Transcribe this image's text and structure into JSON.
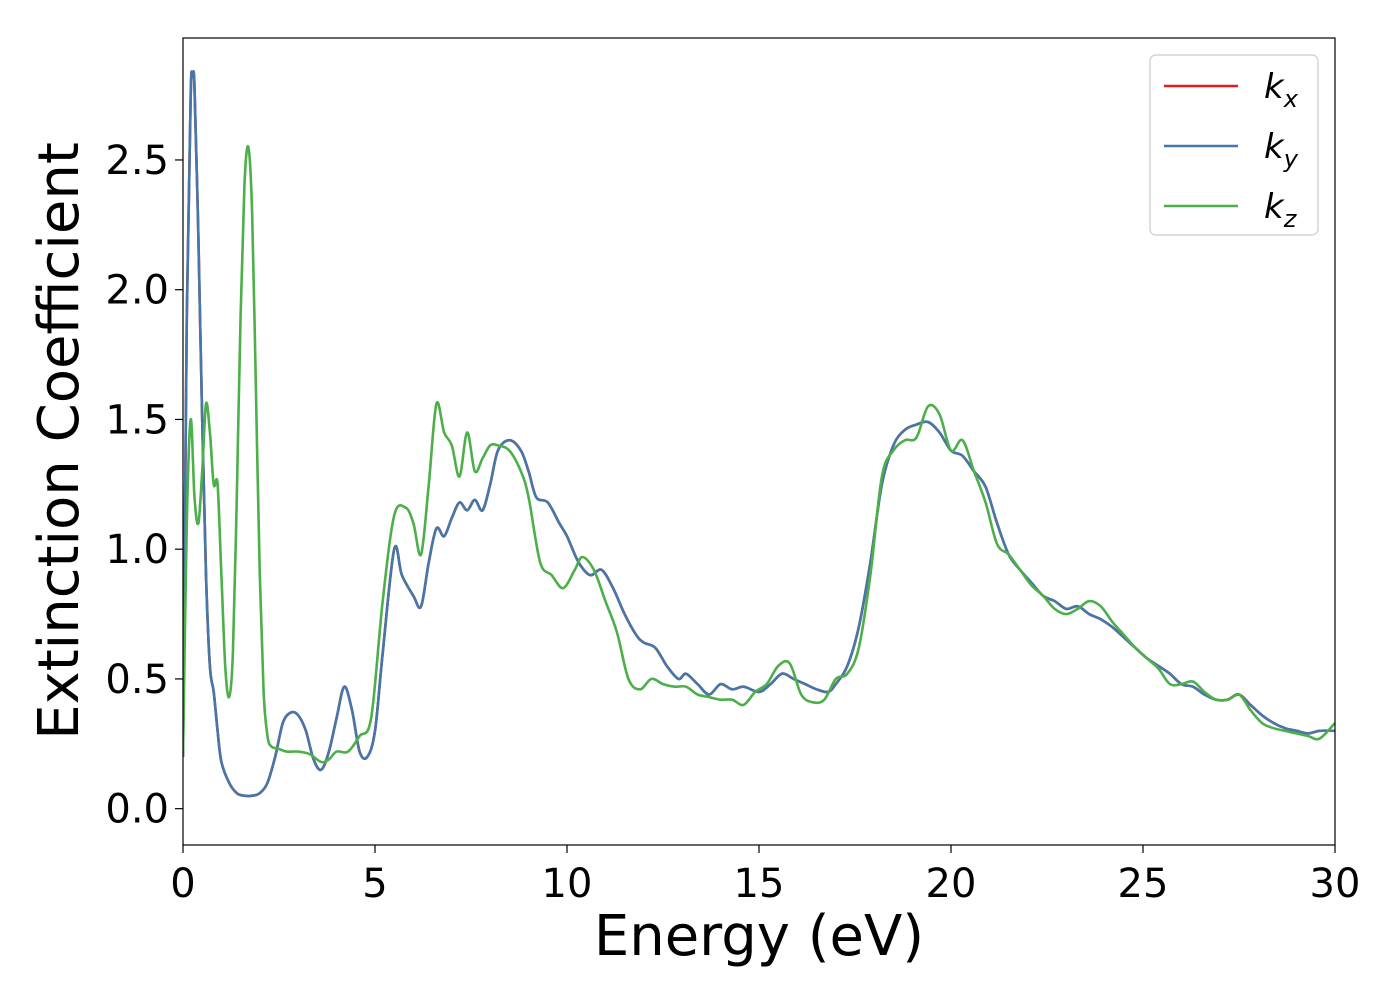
{
  "chart_data": {
    "type": "line",
    "xlabel": "Energy (eV)",
    "ylabel": "Extinction Coefficient",
    "xlim": [
      0,
      30
    ],
    "ylim": [
      -0.14,
      2.97
    ],
    "xticks": [
      0,
      5,
      10,
      15,
      20,
      25,
      30
    ],
    "yticks": [
      0.0,
      0.5,
      1.0,
      1.5,
      2.0,
      2.5
    ],
    "xtick_labels": [
      "0",
      "5",
      "10",
      "15",
      "20",
      "25",
      "30"
    ],
    "ytick_labels": [
      "0.0",
      "0.5",
      "1.0",
      "1.5",
      "2.0",
      "2.5"
    ],
    "grid": false,
    "legend_position": "top-right",
    "series": [
      {
        "name": "k_x",
        "label_base": "k",
        "label_sub": "x",
        "color": "#e41a1c",
        "x": [
          0,
          0.1,
          0.2,
          0.25,
          0.3,
          0.4,
          0.5,
          0.6,
          0.7,
          0.8,
          0.9,
          1.0,
          1.2,
          1.4,
          1.6,
          1.8,
          2.0,
          2.2,
          2.4,
          2.6,
          2.8,
          3.0,
          3.2,
          3.4,
          3.6,
          3.8,
          4.0,
          4.2,
          4.4,
          4.6,
          4.8,
          5.0,
          5.2,
          5.5,
          5.7,
          6.0,
          6.2,
          6.4,
          6.6,
          6.8,
          7.0,
          7.2,
          7.4,
          7.6,
          7.8,
          8.0,
          8.2,
          8.5,
          8.8,
          9.0,
          9.2,
          9.5,
          9.8,
          10.0,
          10.3,
          10.6,
          10.9,
          11.2,
          11.5,
          11.8,
          12.0,
          12.3,
          12.6,
          12.9,
          13.1,
          13.4,
          13.7,
          14.0,
          14.3,
          14.6,
          15.0,
          15.3,
          15.6,
          15.9,
          16.2,
          16.5,
          16.8,
          17.0,
          17.3,
          17.6,
          17.9,
          18.2,
          18.5,
          18.8,
          19.1,
          19.4,
          19.7,
          20.0,
          20.3,
          20.6,
          20.9,
          21.2,
          21.5,
          21.8,
          22.1,
          22.4,
          22.7,
          23.0,
          23.3,
          23.6,
          23.9,
          24.2,
          24.5,
          24.8,
          25.1,
          25.4,
          25.7,
          26.0,
          26.3,
          26.6,
          26.9,
          27.2,
          27.5,
          27.8,
          28.1,
          28.4,
          28.7,
          29.0,
          29.3,
          29.6,
          30.0
        ],
        "y": [
          0.2,
          1.9,
          2.75,
          2.82,
          2.78,
          2.2,
          1.5,
          0.9,
          0.55,
          0.45,
          0.3,
          0.18,
          0.1,
          0.06,
          0.05,
          0.05,
          0.06,
          0.1,
          0.2,
          0.33,
          0.37,
          0.36,
          0.3,
          0.19,
          0.15,
          0.22,
          0.35,
          0.47,
          0.38,
          0.22,
          0.2,
          0.3,
          0.6,
          1.0,
          0.9,
          0.82,
          0.78,
          0.95,
          1.08,
          1.05,
          1.12,
          1.18,
          1.15,
          1.19,
          1.15,
          1.25,
          1.38,
          1.42,
          1.38,
          1.3,
          1.2,
          1.18,
          1.1,
          1.05,
          0.95,
          0.9,
          0.92,
          0.85,
          0.75,
          0.67,
          0.64,
          0.62,
          0.55,
          0.5,
          0.52,
          0.48,
          0.44,
          0.48,
          0.46,
          0.47,
          0.45,
          0.48,
          0.52,
          0.5,
          0.48,
          0.46,
          0.45,
          0.48,
          0.55,
          0.7,
          0.95,
          1.25,
          1.4,
          1.46,
          1.48,
          1.49,
          1.45,
          1.38,
          1.36,
          1.3,
          1.24,
          1.1,
          0.98,
          0.92,
          0.87,
          0.82,
          0.8,
          0.77,
          0.78,
          0.75,
          0.73,
          0.7,
          0.66,
          0.62,
          0.58,
          0.55,
          0.52,
          0.48,
          0.47,
          0.44,
          0.42,
          0.42,
          0.44,
          0.4,
          0.36,
          0.33,
          0.31,
          0.3,
          0.29,
          0.3,
          0.3
        ]
      },
      {
        "name": "k_y",
        "label_base": "k",
        "label_sub": "y",
        "color": "#4477aa",
        "x": [
          0,
          0.1,
          0.2,
          0.25,
          0.3,
          0.4,
          0.5,
          0.6,
          0.7,
          0.8,
          0.9,
          1.0,
          1.2,
          1.4,
          1.6,
          1.8,
          2.0,
          2.2,
          2.4,
          2.6,
          2.8,
          3.0,
          3.2,
          3.4,
          3.6,
          3.8,
          4.0,
          4.2,
          4.4,
          4.6,
          4.8,
          5.0,
          5.2,
          5.5,
          5.7,
          6.0,
          6.2,
          6.4,
          6.6,
          6.8,
          7.0,
          7.2,
          7.4,
          7.6,
          7.8,
          8.0,
          8.2,
          8.5,
          8.8,
          9.0,
          9.2,
          9.5,
          9.8,
          10.0,
          10.3,
          10.6,
          10.9,
          11.2,
          11.5,
          11.8,
          12.0,
          12.3,
          12.6,
          12.9,
          13.1,
          13.4,
          13.7,
          14.0,
          14.3,
          14.6,
          15.0,
          15.3,
          15.6,
          15.9,
          16.2,
          16.5,
          16.8,
          17.0,
          17.3,
          17.6,
          17.9,
          18.2,
          18.5,
          18.8,
          19.1,
          19.4,
          19.7,
          20.0,
          20.3,
          20.6,
          20.9,
          21.2,
          21.5,
          21.8,
          22.1,
          22.4,
          22.7,
          23.0,
          23.3,
          23.6,
          23.9,
          24.2,
          24.5,
          24.8,
          25.1,
          25.4,
          25.7,
          26.0,
          26.3,
          26.6,
          26.9,
          27.2,
          27.5,
          27.8,
          28.1,
          28.4,
          28.7,
          29.0,
          29.3,
          29.6,
          30.0
        ],
        "y": [
          0.2,
          1.9,
          2.75,
          2.82,
          2.78,
          2.2,
          1.5,
          0.9,
          0.55,
          0.45,
          0.3,
          0.18,
          0.1,
          0.06,
          0.05,
          0.05,
          0.06,
          0.1,
          0.2,
          0.33,
          0.37,
          0.36,
          0.3,
          0.19,
          0.15,
          0.22,
          0.35,
          0.47,
          0.38,
          0.22,
          0.2,
          0.3,
          0.6,
          1.0,
          0.9,
          0.82,
          0.78,
          0.95,
          1.08,
          1.05,
          1.12,
          1.18,
          1.15,
          1.19,
          1.15,
          1.25,
          1.38,
          1.42,
          1.38,
          1.3,
          1.2,
          1.18,
          1.1,
          1.05,
          0.95,
          0.9,
          0.92,
          0.85,
          0.75,
          0.67,
          0.64,
          0.62,
          0.55,
          0.5,
          0.52,
          0.48,
          0.44,
          0.48,
          0.46,
          0.47,
          0.45,
          0.48,
          0.52,
          0.5,
          0.48,
          0.46,
          0.45,
          0.48,
          0.55,
          0.7,
          0.95,
          1.25,
          1.4,
          1.46,
          1.48,
          1.49,
          1.45,
          1.38,
          1.36,
          1.3,
          1.24,
          1.1,
          0.98,
          0.92,
          0.87,
          0.82,
          0.8,
          0.77,
          0.78,
          0.75,
          0.73,
          0.7,
          0.66,
          0.62,
          0.58,
          0.55,
          0.52,
          0.48,
          0.47,
          0.44,
          0.42,
          0.42,
          0.44,
          0.4,
          0.36,
          0.33,
          0.31,
          0.3,
          0.29,
          0.3,
          0.3
        ]
      },
      {
        "name": "k_z",
        "label_base": "k",
        "label_sub": "z",
        "color": "#4daf4a",
        "x": [
          0,
          0.1,
          0.2,
          0.3,
          0.4,
          0.5,
          0.6,
          0.7,
          0.8,
          0.9,
          1.0,
          1.1,
          1.2,
          1.3,
          1.4,
          1.5,
          1.6,
          1.7,
          1.8,
          1.9,
          2.0,
          2.1,
          2.2,
          2.3,
          2.5,
          2.7,
          3.0,
          3.3,
          3.6,
          3.8,
          4.0,
          4.3,
          4.6,
          4.9,
          5.2,
          5.5,
          5.8,
          6.0,
          6.2,
          6.4,
          6.6,
          6.8,
          7.0,
          7.2,
          7.4,
          7.6,
          7.8,
          8.0,
          8.2,
          8.5,
          8.8,
          9.0,
          9.3,
          9.6,
          9.9,
          10.2,
          10.4,
          10.7,
          11.0,
          11.3,
          11.6,
          11.9,
          12.2,
          12.5,
          12.8,
          13.1,
          13.4,
          13.7,
          14.0,
          14.3,
          14.6,
          14.9,
          15.2,
          15.5,
          15.8,
          16.1,
          16.4,
          16.7,
          17.0,
          17.3,
          17.6,
          17.9,
          18.2,
          18.5,
          18.8,
          19.1,
          19.4,
          19.7,
          20.0,
          20.3,
          20.6,
          20.9,
          21.2,
          21.5,
          21.8,
          22.1,
          22.4,
          22.7,
          23.0,
          23.3,
          23.6,
          23.9,
          24.2,
          24.5,
          24.8,
          25.1,
          25.4,
          25.7,
          26.0,
          26.3,
          26.6,
          26.9,
          27.2,
          27.5,
          27.8,
          28.1,
          28.4,
          28.7,
          29.0,
          29.3,
          29.6,
          30.0
        ],
        "y": [
          0.2,
          1.1,
          1.5,
          1.2,
          1.1,
          1.3,
          1.56,
          1.45,
          1.25,
          1.25,
          0.9,
          0.55,
          0.43,
          0.6,
          1.2,
          1.9,
          2.4,
          2.55,
          2.3,
          1.6,
          0.9,
          0.45,
          0.28,
          0.24,
          0.23,
          0.22,
          0.22,
          0.21,
          0.18,
          0.19,
          0.22,
          0.22,
          0.28,
          0.35,
          0.8,
          1.13,
          1.16,
          1.1,
          0.98,
          1.25,
          1.56,
          1.45,
          1.4,
          1.28,
          1.45,
          1.3,
          1.35,
          1.4,
          1.4,
          1.38,
          1.3,
          1.2,
          0.95,
          0.9,
          0.85,
          0.92,
          0.97,
          0.92,
          0.8,
          0.68,
          0.5,
          0.46,
          0.5,
          0.48,
          0.47,
          0.47,
          0.44,
          0.43,
          0.42,
          0.42,
          0.4,
          0.45,
          0.48,
          0.55,
          0.56,
          0.44,
          0.41,
          0.42,
          0.5,
          0.52,
          0.62,
          0.9,
          1.28,
          1.38,
          1.42,
          1.43,
          1.55,
          1.52,
          1.38,
          1.42,
          1.3,
          1.18,
          1.02,
          0.98,
          0.92,
          0.86,
          0.82,
          0.77,
          0.75,
          0.77,
          0.8,
          0.78,
          0.72,
          0.67,
          0.62,
          0.58,
          0.54,
          0.48,
          0.48,
          0.49,
          0.45,
          0.42,
          0.42,
          0.44,
          0.38,
          0.33,
          0.31,
          0.3,
          0.29,
          0.28,
          0.27,
          0.33
        ]
      }
    ]
  }
}
